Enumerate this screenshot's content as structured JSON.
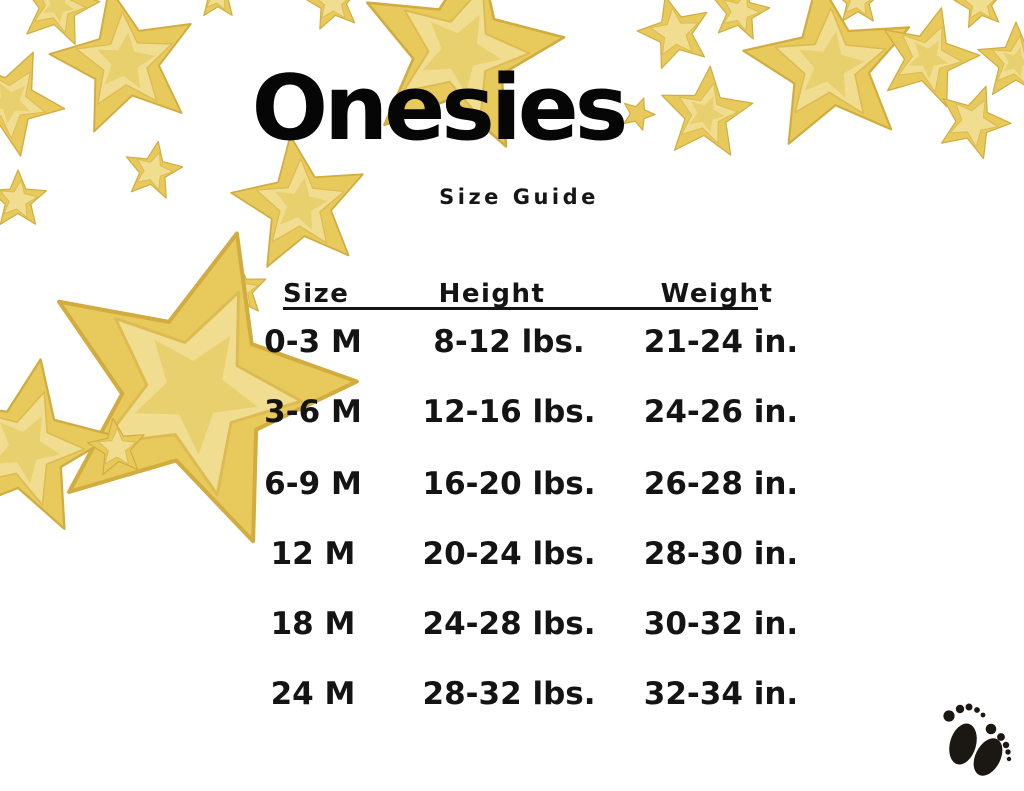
{
  "page": {
    "title": "Onesies",
    "subtitle": "Size Guide"
  },
  "size_table": {
    "columns": [
      "Size",
      "Height",
      "Weight"
    ],
    "rows": [
      [
        "0-3 M",
        "8-12 lbs.",
        "21-24 in."
      ],
      [
        "3-6 M",
        "12-16 lbs.",
        "24-26 in."
      ],
      [
        "6-9 M",
        "16-20 lbs.",
        "26-28 in."
      ],
      [
        "12 M",
        "20-24 lbs.",
        "28-30 in."
      ],
      [
        "18 M",
        "24-28 lbs.",
        "30-32 in."
      ],
      [
        "24 M",
        "28-32 lbs.",
        "32-34 in."
      ]
    ]
  },
  "icons": {
    "stars": "gold-glitter-star",
    "footprints": "baby-footprints-icon"
  },
  "colors": {
    "background": "#FFFFFF",
    "title_text": "#060606",
    "table_text": "#141414",
    "star_outer": "#E8C95C",
    "star_edge": "#D2AC3E",
    "star_mid": "#F0DD8F",
    "star_mid_edge": "#DCBC52",
    "star_inner": "#E9D06E",
    "footprints": "#1B1713"
  }
}
